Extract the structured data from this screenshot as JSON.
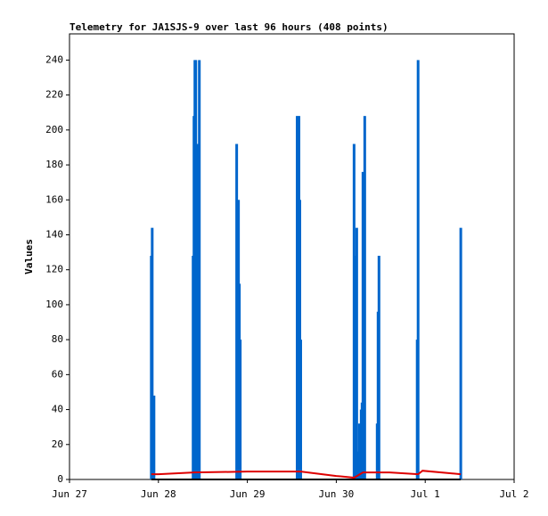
{
  "chart_data": {
    "type": "line",
    "title": "Telemetry for JA1SJS-9 over last 96 hours (408 points)",
    "y_label": "Values",
    "xlim": [
      0,
      5
    ],
    "xticks": [
      {
        "value": 0,
        "label": "Jun 27"
      },
      {
        "value": 1,
        "label": "Jun 28"
      },
      {
        "value": 2,
        "label": "Jun 29"
      },
      {
        "value": 3,
        "label": "Jun 30"
      },
      {
        "value": 4,
        "label": "Jul 1"
      },
      {
        "value": 5,
        "label": "Jul 2"
      }
    ],
    "ylim": [
      0,
      255
    ],
    "yticks": [
      0,
      20,
      40,
      60,
      80,
      100,
      120,
      140,
      160,
      180,
      200,
      220,
      240
    ],
    "series": [
      {
        "color": "#0066cc",
        "style": "stem",
        "x": [
          0.92,
          0.93,
          0.95,
          1.39,
          1.4,
          1.41,
          1.42,
          1.43,
          1.44,
          1.45,
          1.46,
          1.88,
          1.9,
          1.91,
          1.92,
          2.56,
          2.58,
          2.59,
          2.6,
          3.2,
          3.22,
          3.23,
          3.25,
          3.26,
          3.28,
          3.29,
          3.3,
          3.32,
          3.46,
          3.47,
          3.48,
          3.91,
          3.92,
          4.4
        ],
        "values": [
          128,
          144,
          48,
          128,
          208,
          240,
          240,
          176,
          192,
          8,
          240,
          192,
          160,
          112,
          80,
          208,
          208,
          160,
          80,
          192,
          128,
          144,
          16,
          32,
          40,
          44,
          176,
          208,
          32,
          96,
          128,
          80,
          240,
          144
        ]
      },
      {
        "color": "#dd0000",
        "style": "line",
        "x": [
          0.92,
          1.0,
          1.4,
          2.0,
          2.6,
          3.0,
          3.2,
          3.3,
          3.6,
          3.92,
          3.97,
          4.4
        ],
        "values": [
          3,
          3,
          4,
          4.5,
          4.5,
          2,
          1,
          4,
          4,
          3,
          5,
          3
        ]
      },
      {
        "color": "#000000",
        "style": "line",
        "x": [
          0.92,
          4.4
        ],
        "values": [
          0,
          0
        ]
      }
    ]
  }
}
